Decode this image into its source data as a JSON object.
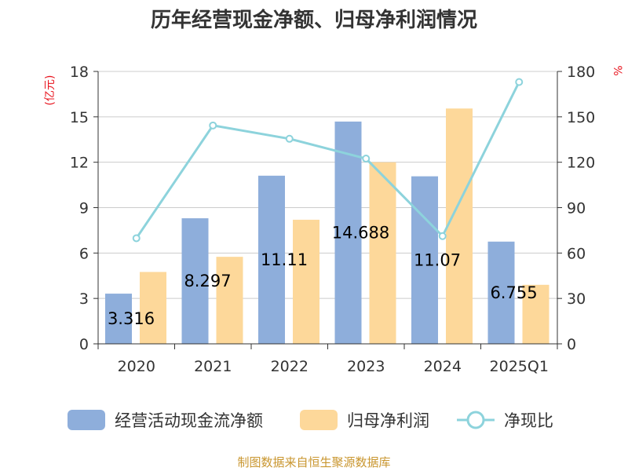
{
  "title": "历年经营现金净额、归母净利润情况",
  "source": "制图数据来自恒生聚源数据库",
  "chart_data": {
    "type": "bar",
    "title": "历年经营现金净额、归母净利润情况",
    "categories": [
      "2020",
      "2021",
      "2022",
      "2023",
      "2024",
      "2025Q1"
    ],
    "left_axis": {
      "unit_label": "(亿元)",
      "ylim": [
        0,
        18
      ],
      "ticks": [
        "0",
        "3",
        "6",
        "9",
        "12",
        "15",
        "18"
      ]
    },
    "right_axis": {
      "unit_label": "%",
      "ylim": [
        0,
        180
      ],
      "ticks": [
        "0",
        "30",
        "60",
        "90",
        "120",
        "150",
        "180"
      ]
    },
    "grid": true,
    "legend_position": "bottom",
    "series": [
      {
        "name": "经营活动现金流净额",
        "type": "bar",
        "axis": "left",
        "color": "#8eaedb",
        "values": [
          3.316,
          8.297,
          11.11,
          14.688,
          11.07,
          6.755
        ],
        "labels": [
          "3.316",
          "8.297",
          "11.11",
          "14.688",
          "11.07",
          "6.755"
        ]
      },
      {
        "name": "归母净利润",
        "type": "bar",
        "axis": "left",
        "color": "#fdd89a",
        "values": [
          4.75,
          5.75,
          8.2,
          12.0,
          15.55,
          3.9
        ]
      },
      {
        "name": "净现比",
        "type": "line",
        "axis": "right",
        "color": "#8dd3dc",
        "values": [
          69.8,
          144.3,
          135.5,
          122.4,
          71.2,
          173.0
        ]
      }
    ]
  }
}
